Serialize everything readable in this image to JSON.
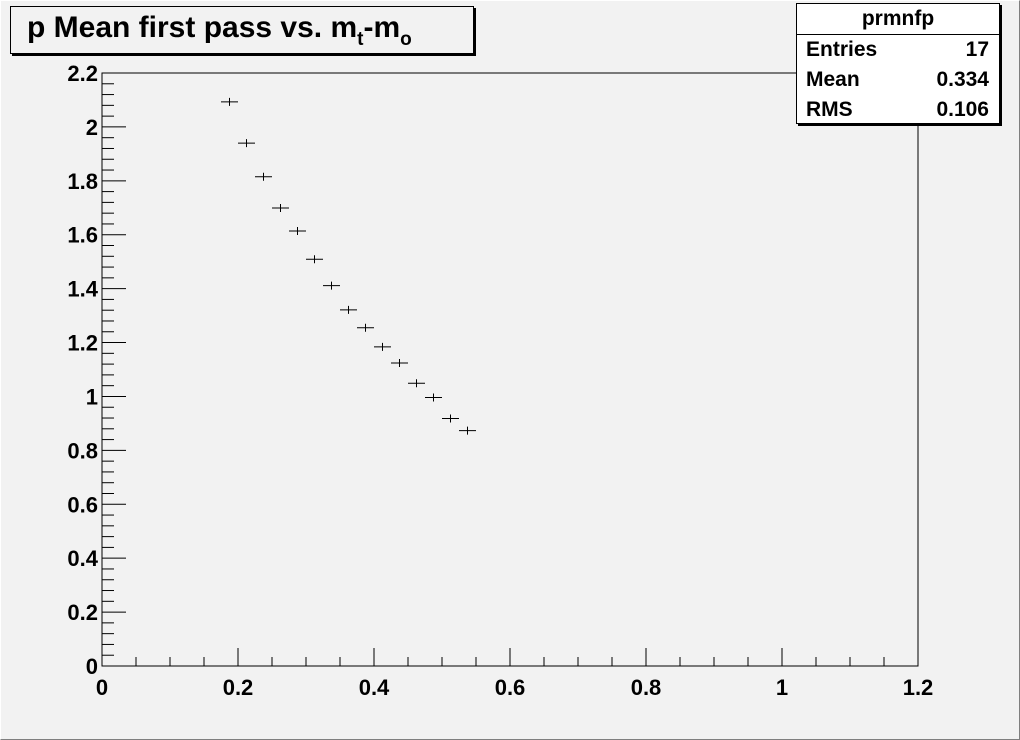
{
  "title": {
    "main": "p Mean first pass vs. m",
    "sub1": "t",
    "mid": "-m",
    "sub2": "o"
  },
  "stats": {
    "name": "prmnfp",
    "rows": [
      {
        "label": "Entries",
        "value": "17"
      },
      {
        "label": "Mean",
        "value": "0.334"
      },
      {
        "label": "RMS",
        "value": "0.106"
      }
    ]
  },
  "chart_data": {
    "type": "scatter",
    "title": "p Mean first pass vs. m_t-m_o",
    "xlabel": "",
    "ylabel": "",
    "xlim": [
      0,
      1.2
    ],
    "ylim": [
      0,
      2.2
    ],
    "x_ticks": [
      "0",
      "0.2",
      "0.4",
      "0.6",
      "0.8",
      "1",
      "1.2"
    ],
    "y_ticks": [
      "0",
      "0.2",
      "0.4",
      "0.6",
      "0.8",
      "1",
      "1.2",
      "1.4",
      "1.6",
      "1.8",
      "2",
      "2.2"
    ],
    "x_bin_width": 0.025,
    "points": [
      {
        "x": 0.1875,
        "y": 2.093
      },
      {
        "x": 0.2125,
        "y": 1.94
      },
      {
        "x": 0.2375,
        "y": 1.815
      },
      {
        "x": 0.2625,
        "y": 1.699
      },
      {
        "x": 0.2875,
        "y": 1.614
      },
      {
        "x": 0.3125,
        "y": 1.509
      },
      {
        "x": 0.3375,
        "y": 1.411
      },
      {
        "x": 0.3625,
        "y": 1.321
      },
      {
        "x": 0.3875,
        "y": 1.255
      },
      {
        "x": 0.4125,
        "y": 1.184
      },
      {
        "x": 0.4375,
        "y": 1.124
      },
      {
        "x": 0.4625,
        "y": 1.049
      },
      {
        "x": 0.4875,
        "y": 0.996
      },
      {
        "x": 0.5125,
        "y": 0.918
      },
      {
        "x": 0.5375,
        "y": 0.873
      }
    ]
  }
}
